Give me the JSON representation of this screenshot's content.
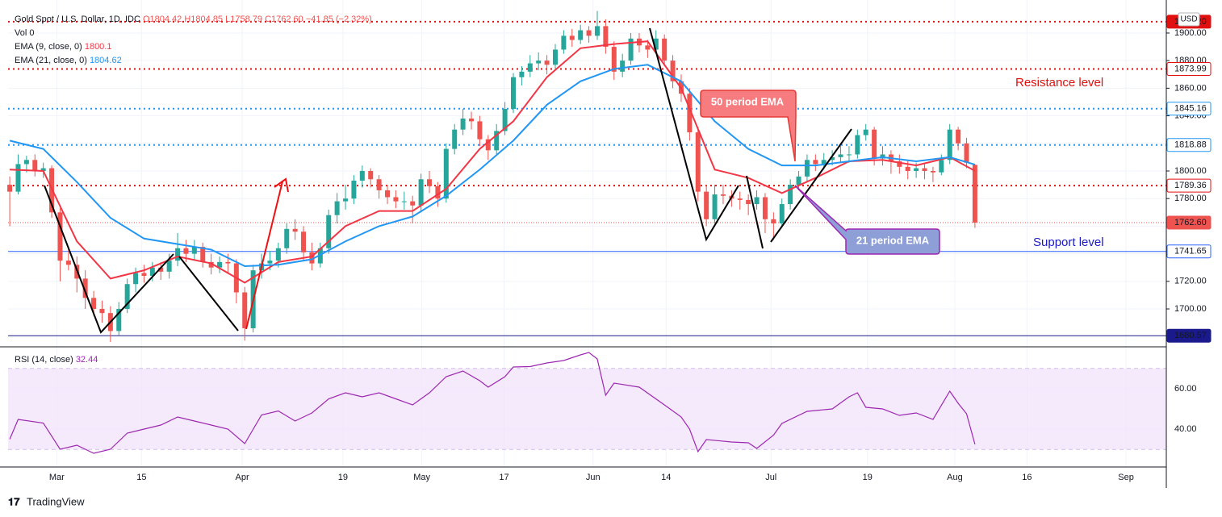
{
  "chart_data": {
    "type": "candlestick",
    "symbol": "Gold Spot / U.S. Dollar, 1D, IDC",
    "header_values": [
      "O1804.42",
      "H1804.85",
      "L1758.79",
      "C1762.60",
      "−41.85 (−2.32%)"
    ],
    "volume_label": "Vol",
    "volume_value": 0,
    "currency": "USD",
    "brand": "TradingView",
    "up_color": "#26a69a",
    "down_color": "#ef5350",
    "xlim": [
      -0.2,
      137.8
    ],
    "xticks": [
      {
        "value": 5.6,
        "label": "Mar"
      },
      {
        "value": 15.7,
        "label": "15"
      },
      {
        "value": 27.7,
        "label": "Apr"
      },
      {
        "value": 39.7,
        "label": "19"
      },
      {
        "value": 49.1,
        "label": "May"
      },
      {
        "value": 58.9,
        "label": "17"
      },
      {
        "value": 69.5,
        "label": "Jun"
      },
      {
        "value": 78.2,
        "label": "14"
      },
      {
        "value": 90.7,
        "label": "Jul"
      },
      {
        "value": 102.2,
        "label": "19"
      },
      {
        "value": 112.6,
        "label": "Aug"
      },
      {
        "value": 121.2,
        "label": "16"
      },
      {
        "value": 133.0,
        "label": "Sep"
      }
    ],
    "ylim": [
      1673.7,
      1918.1
    ],
    "yticks": [
      {
        "value": 1700,
        "label": "1700.00"
      },
      {
        "value": 1720,
        "label": "1720.00"
      },
      {
        "value": 1740,
        "label": "1740.00"
      },
      {
        "value": 1760,
        "label": "1760.00"
      },
      {
        "value": 1780,
        "label": "1780.00"
      },
      {
        "value": 1800,
        "label": "1800.00"
      },
      {
        "value": 1820,
        "label": "1820.00"
      },
      {
        "value": 1840,
        "label": "1840.00"
      },
      {
        "value": 1860,
        "label": "1860.00"
      },
      {
        "value": 1880,
        "label": "1880.00"
      },
      {
        "value": 1900,
        "label": "1900.00"
      }
    ],
    "grid": true,
    "candles": [
      [
        1790,
        1796,
        1760,
        1785
      ],
      [
        1785,
        1812,
        1783,
        1805
      ],
      [
        1805,
        1811,
        1799,
        1808
      ],
      [
        1808,
        1812,
        1796,
        1800
      ],
      [
        1800,
        1806,
        1795,
        1802
      ],
      [
        1802,
        1804,
        1766,
        1770
      ],
      [
        1770,
        1773,
        1720,
        1735
      ],
      [
        1735,
        1745,
        1728,
        1732
      ],
      [
        1732,
        1738,
        1712,
        1722
      ],
      [
        1722,
        1728,
        1700,
        1708
      ],
      [
        1708,
        1713,
        1695,
        1700
      ],
      [
        1700,
        1706,
        1690,
        1697
      ],
      [
        1697,
        1702,
        1676,
        1684
      ],
      [
        1684,
        1705,
        1681,
        1700
      ],
      [
        1700,
        1722,
        1697,
        1718
      ],
      [
        1718,
        1730,
        1712,
        1726
      ],
      [
        1726,
        1732,
        1719,
        1724
      ],
      [
        1724,
        1734,
        1720,
        1730
      ],
      [
        1730,
        1734,
        1721,
        1727
      ],
      [
        1727,
        1740,
        1722,
        1735
      ],
      [
        1735,
        1755,
        1731,
        1744
      ],
      [
        1744,
        1750,
        1734,
        1740
      ],
      [
        1740,
        1750,
        1735,
        1745
      ],
      [
        1745,
        1748,
        1730,
        1734
      ],
      [
        1734,
        1740,
        1725,
        1730
      ],
      [
        1730,
        1738,
        1726,
        1734
      ],
      [
        1734,
        1740,
        1726,
        1733
      ],
      [
        1733,
        1736,
        1704,
        1712
      ],
      [
        1712,
        1716,
        1677,
        1686
      ],
      [
        1686,
        1732,
        1683,
        1728
      ],
      [
        1728,
        1740,
        1722,
        1733
      ],
      [
        1733,
        1742,
        1728,
        1735
      ],
      [
        1735,
        1748,
        1730,
        1744
      ],
      [
        1744,
        1762,
        1740,
        1758
      ],
      [
        1758,
        1765,
        1750,
        1756
      ],
      [
        1756,
        1760,
        1735,
        1741
      ],
      [
        1741,
        1748,
        1728,
        1733
      ],
      [
        1733,
        1748,
        1730,
        1744
      ],
      [
        1744,
        1772,
        1740,
        1768
      ],
      [
        1768,
        1784,
        1762,
        1778
      ],
      [
        1778,
        1790,
        1772,
        1780
      ],
      [
        1780,
        1797,
        1776,
        1793
      ],
      [
        1793,
        1804,
        1788,
        1800
      ],
      [
        1800,
        1802,
        1788,
        1794
      ],
      [
        1794,
        1797,
        1780,
        1786
      ],
      [
        1786,
        1790,
        1776,
        1781
      ],
      [
        1781,
        1786,
        1773,
        1778
      ],
      [
        1778,
        1785,
        1772,
        1778
      ],
      [
        1778,
        1782,
        1762,
        1775
      ],
      [
        1775,
        1798,
        1770,
        1794
      ],
      [
        1794,
        1800,
        1784,
        1789
      ],
      [
        1789,
        1792,
        1774,
        1780
      ],
      [
        1780,
        1820,
        1777,
        1816
      ],
      [
        1816,
        1834,
        1812,
        1830
      ],
      [
        1830,
        1845,
        1826,
        1838
      ],
      [
        1838,
        1843,
        1830,
        1836
      ],
      [
        1836,
        1840,
        1818,
        1823
      ],
      [
        1823,
        1826,
        1808,
        1815
      ],
      [
        1815,
        1834,
        1812,
        1829
      ],
      [
        1829,
        1850,
        1826,
        1845
      ],
      [
        1845,
        1871,
        1842,
        1868
      ],
      [
        1868,
        1876,
        1862,
        1872
      ],
      [
        1872,
        1884,
        1868,
        1878
      ],
      [
        1878,
        1886,
        1873,
        1880
      ],
      [
        1880,
        1884,
        1870,
        1877
      ],
      [
        1877,
        1892,
        1874,
        1888
      ],
      [
        1888,
        1902,
        1885,
        1898
      ],
      [
        1898,
        1903,
        1890,
        1895
      ],
      [
        1895,
        1906,
        1892,
        1902
      ],
      [
        1902,
        1905,
        1893,
        1898
      ],
      [
        1898,
        1916,
        1895,
        1905
      ],
      [
        1905,
        1910,
        1885,
        1890
      ],
      [
        1890,
        1894,
        1866,
        1872
      ],
      [
        1872,
        1885,
        1868,
        1880
      ],
      [
        1880,
        1900,
        1877,
        1896
      ],
      [
        1896,
        1900,
        1886,
        1891
      ],
      [
        1891,
        1895,
        1882,
        1888
      ],
      [
        1888,
        1902,
        1885,
        1896
      ],
      [
        1896,
        1899,
        1876,
        1880
      ],
      [
        1880,
        1884,
        1860,
        1865
      ],
      [
        1865,
        1870,
        1850,
        1856
      ],
      [
        1856,
        1860,
        1822,
        1828
      ],
      [
        1828,
        1832,
        1778,
        1785
      ],
      [
        1785,
        1790,
        1760,
        1765
      ],
      [
        1765,
        1790,
        1762,
        1783
      ],
      [
        1783,
        1790,
        1776,
        1782
      ],
      [
        1782,
        1786,
        1774,
        1780
      ],
      [
        1780,
        1785,
        1772,
        1779
      ],
      [
        1779,
        1783,
        1768,
        1776
      ],
      [
        1776,
        1786,
        1772,
        1781
      ],
      [
        1781,
        1784,
        1755,
        1765
      ],
      [
        1765,
        1770,
        1750,
        1762
      ],
      [
        1762,
        1780,
        1759,
        1776
      ],
      [
        1776,
        1794,
        1772,
        1790
      ],
      [
        1790,
        1800,
        1786,
        1796
      ],
      [
        1796,
        1812,
        1792,
        1808
      ],
      [
        1808,
        1812,
        1800,
        1805
      ],
      [
        1805,
        1813,
        1801,
        1808
      ],
      [
        1808,
        1815,
        1804,
        1810
      ],
      [
        1810,
        1818,
        1806,
        1812
      ],
      [
        1812,
        1818,
        1806,
        1812
      ],
      [
        1812,
        1830,
        1809,
        1826
      ],
      [
        1826,
        1834,
        1822,
        1830
      ],
      [
        1830,
        1832,
        1804,
        1809
      ],
      [
        1809,
        1818,
        1804,
        1812
      ],
      [
        1812,
        1815,
        1798,
        1807
      ],
      [
        1807,
        1812,
        1798,
        1803
      ],
      [
        1803,
        1808,
        1794,
        1800
      ],
      [
        1800,
        1806,
        1795,
        1802
      ],
      [
        1802,
        1805,
        1794,
        1800
      ],
      [
        1800,
        1803,
        1792,
        1799
      ],
      [
        1799,
        1812,
        1797,
        1808
      ],
      [
        1808,
        1834,
        1805,
        1830
      ],
      [
        1830,
        1832,
        1815,
        1820
      ],
      [
        1820,
        1824,
        1802,
        1806
      ],
      [
        1804.42,
        1804.85,
        1758.79,
        1762.6
      ]
    ],
    "series": [
      {
        "name": "EMA (9, close, 0)",
        "color": "#f23645",
        "x": [
          0,
          4,
          8,
          12,
          16,
          20,
          24,
          28,
          32,
          36,
          40,
          44,
          48,
          52,
          56,
          60,
          64,
          68,
          72,
          76,
          80,
          84,
          88,
          92,
          96,
          100,
          104,
          108,
          112,
          115
        ],
        "values": [
          1801,
          1800,
          1749,
          1722,
          1728,
          1738,
          1733,
          1719,
          1734,
          1738,
          1760,
          1771,
          1771,
          1787,
          1816,
          1836,
          1868,
          1889,
          1892,
          1894,
          1860,
          1801,
          1795,
          1784,
          1795,
          1807,
          1808,
          1804,
          1810,
          1800.1
        ]
      },
      {
        "name": "EMA (21, close, 0)",
        "color": "#2196f3",
        "x": [
          0,
          4,
          8,
          12,
          16,
          20,
          24,
          28,
          32,
          36,
          40,
          44,
          48,
          52,
          56,
          60,
          64,
          68,
          72,
          76,
          80,
          84,
          88,
          92,
          96,
          100,
          104,
          108,
          112,
          115
        ],
        "values": [
          1822,
          1816,
          1792,
          1766,
          1751,
          1747,
          1743,
          1731,
          1732,
          1736,
          1749,
          1760,
          1767,
          1782,
          1801,
          1822,
          1848,
          1865,
          1874,
          1877,
          1865,
          1836,
          1816,
          1804,
          1804,
          1807,
          1810,
          1807,
          1810,
          1804.62
        ]
      }
    ],
    "levels": [
      {
        "price": 1908.2,
        "label": "1908.20",
        "color": "#e01010",
        "style": "dotted",
        "text": "#ffffff",
        "bg": "#e01010"
      },
      {
        "price": 1873.99,
        "color": "#e01010",
        "style": "dotted",
        "text": "#e01010",
        "bg": "#ffffff"
      },
      {
        "price": 1845.16,
        "color": "#2196f3",
        "style": "dotted",
        "text": "#1565c0",
        "bg": "#ffffff"
      },
      {
        "price": 1818.88,
        "color": "#2196f3",
        "style": "dotted",
        "text": "#131722",
        "bg": "#ffffff"
      },
      {
        "price": 1789.36,
        "color": "#e01010",
        "style": "dotted",
        "text": "#b71c1c",
        "bg": "#ffffff"
      },
      {
        "price": 1762.6,
        "label": "1762.60",
        "color": "#ef5350",
        "style": "fine",
        "text": "#ffffff",
        "bg": "#ef5350"
      },
      {
        "price": 1741.65,
        "color": "#2962ff",
        "style": "solid",
        "text": "#1a237e",
        "bg": "#ffffff"
      },
      {
        "price": 1680.57,
        "color": "#1a1a8c",
        "style": "solid",
        "text": "#ffffff",
        "bg": "#1a1a8c"
      }
    ],
    "annotations": {
      "resistance": "Resistance level",
      "support": "Support level",
      "ema50": "50 period EMA",
      "ema21": "21 period EMA"
    },
    "rsi": {
      "name": "RSI (14, close)",
      "color": "#9c27b0",
      "ylim": [
        21.6,
        80
      ],
      "yticks": [
        {
          "value": 40,
          "label": "40.00"
        },
        {
          "value": 60,
          "label": "60.00"
        }
      ],
      "band": [
        30,
        70
      ],
      "x": [
        0,
        1,
        4,
        6,
        8,
        10,
        12,
        14,
        16,
        18,
        20,
        22,
        24,
        26,
        28,
        30,
        32,
        34,
        36,
        38,
        40,
        42,
        44,
        46,
        48,
        50,
        52,
        54,
        56,
        57,
        59,
        60,
        62,
        64,
        66,
        68,
        69,
        70,
        71,
        72,
        75,
        78,
        80,
        81,
        82,
        83,
        86,
        88,
        89,
        91,
        92,
        95,
        98,
        100,
        101,
        102,
        104,
        106,
        108,
        110,
        112,
        113,
        114,
        115
      ],
      "values": [
        35,
        44.8,
        43,
        30,
        32,
        28,
        30,
        38,
        40,
        42,
        46,
        44,
        42,
        40,
        32.8,
        47,
        49,
        44,
        48,
        55,
        58,
        56,
        58,
        55,
        52,
        58,
        66,
        68.8,
        64,
        60.8,
        66,
        70.8,
        71,
        72.8,
        74,
        76.8,
        78,
        74.8,
        56.8,
        62.8,
        60.8,
        52,
        46,
        40,
        28.8,
        34.8,
        33.6,
        33.2,
        30.4,
        37,
        42.8,
        48.8,
        50,
        56,
        58,
        50.8,
        50,
        46.8,
        48,
        44.8,
        58.8,
        52.8,
        47.6,
        32.44
      ]
    }
  }
}
